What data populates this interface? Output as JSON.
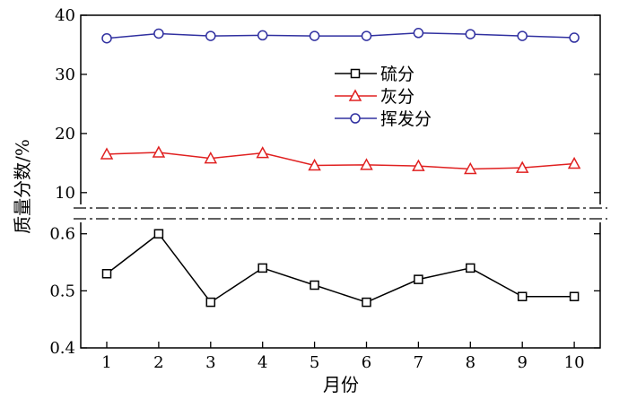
{
  "chart_data": {
    "type": "line",
    "title": "",
    "xlabel": "月份",
    "ylabel": "质量分数/%",
    "x": [
      1,
      2,
      3,
      4,
      5,
      6,
      7,
      8,
      9,
      10
    ],
    "x_ticks": [
      "1",
      "2",
      "3",
      "4",
      "5",
      "6",
      "7",
      "8",
      "9",
      "10"
    ],
    "axis_break": true,
    "legend_position": "upper-center",
    "upper_panel": {
      "ylim": [
        8,
        40
      ],
      "y_ticks": [
        "10",
        "20",
        "30",
        "40"
      ],
      "series": [
        {
          "name": "灰分",
          "color": "#e02020",
          "marker": "triangle",
          "values": [
            16.5,
            16.8,
            15.8,
            16.7,
            14.6,
            14.7,
            14.5,
            14.0,
            14.2,
            14.9
          ]
        },
        {
          "name": "挥发分",
          "color": "#3030a0",
          "marker": "circle",
          "values": [
            36.1,
            36.9,
            36.5,
            36.6,
            36.5,
            36.5,
            37.0,
            36.8,
            36.5,
            36.2
          ]
        }
      ]
    },
    "lower_panel": {
      "ylim": [
        0.4,
        0.62
      ],
      "y_ticks": [
        "0.4",
        "0.5",
        "0.6"
      ],
      "series": [
        {
          "name": "硫分",
          "color": "#000000",
          "marker": "square",
          "values": [
            0.53,
            0.6,
            0.48,
            0.54,
            0.51,
            0.48,
            0.52,
            0.54,
            0.49,
            0.49
          ]
        }
      ]
    },
    "legend": [
      "硫分",
      "灰分",
      "挥发分"
    ]
  }
}
